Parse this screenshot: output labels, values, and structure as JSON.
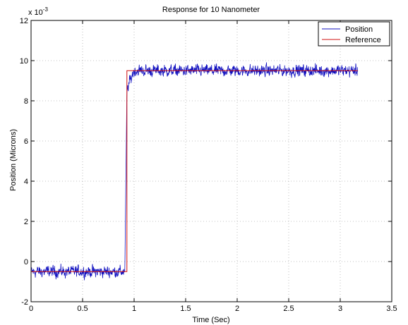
{
  "chart_data": {
    "type": "line",
    "title": "Response for 10 Nanometer",
    "xlabel": "Time (Sec)",
    "ylabel": "Position (Microns)",
    "y_multiplier": "x 10",
    "y_multiplier_exponent": "-3",
    "xlim": [
      0,
      3.5
    ],
    "ylim": [
      -2,
      12
    ],
    "x_ticks": [
      "0",
      "0.5",
      "1",
      "1.5",
      "2",
      "2.5",
      "3",
      "3.5"
    ],
    "y_ticks": [
      "-2",
      "0",
      "2",
      "4",
      "6",
      "8",
      "10",
      "12"
    ],
    "grid": true,
    "legend_position": "top-right",
    "series": [
      {
        "name": "Position",
        "color": "#1010c0",
        "description_points": {
          "x": [
            0,
            0.1,
            0.2,
            0.3,
            0.4,
            0.5,
            0.6,
            0.7,
            0.8,
            0.9,
            0.91,
            0.92,
            0.93,
            0.94,
            0.96,
            1.0,
            1.2,
            1.5,
            2.0,
            2.5,
            3.0,
            3.17
          ],
          "y": [
            -0.5,
            -0.5,
            -0.5,
            -0.5,
            -0.5,
            -0.5,
            -0.5,
            -0.5,
            -0.5,
            -0.5,
            -0.5,
            4.0,
            8.5,
            8.7,
            9.0,
            9.5,
            9.5,
            9.5,
            9.5,
            9.5,
            9.5,
            9.5
          ]
        },
        "noise_amplitude": 0.35
      },
      {
        "name": "Reference",
        "color": "#d01010",
        "x": [
          0,
          0.93,
          0.93,
          3.17
        ],
        "y": [
          -0.5,
          -0.5,
          9.5,
          9.5
        ]
      }
    ]
  }
}
